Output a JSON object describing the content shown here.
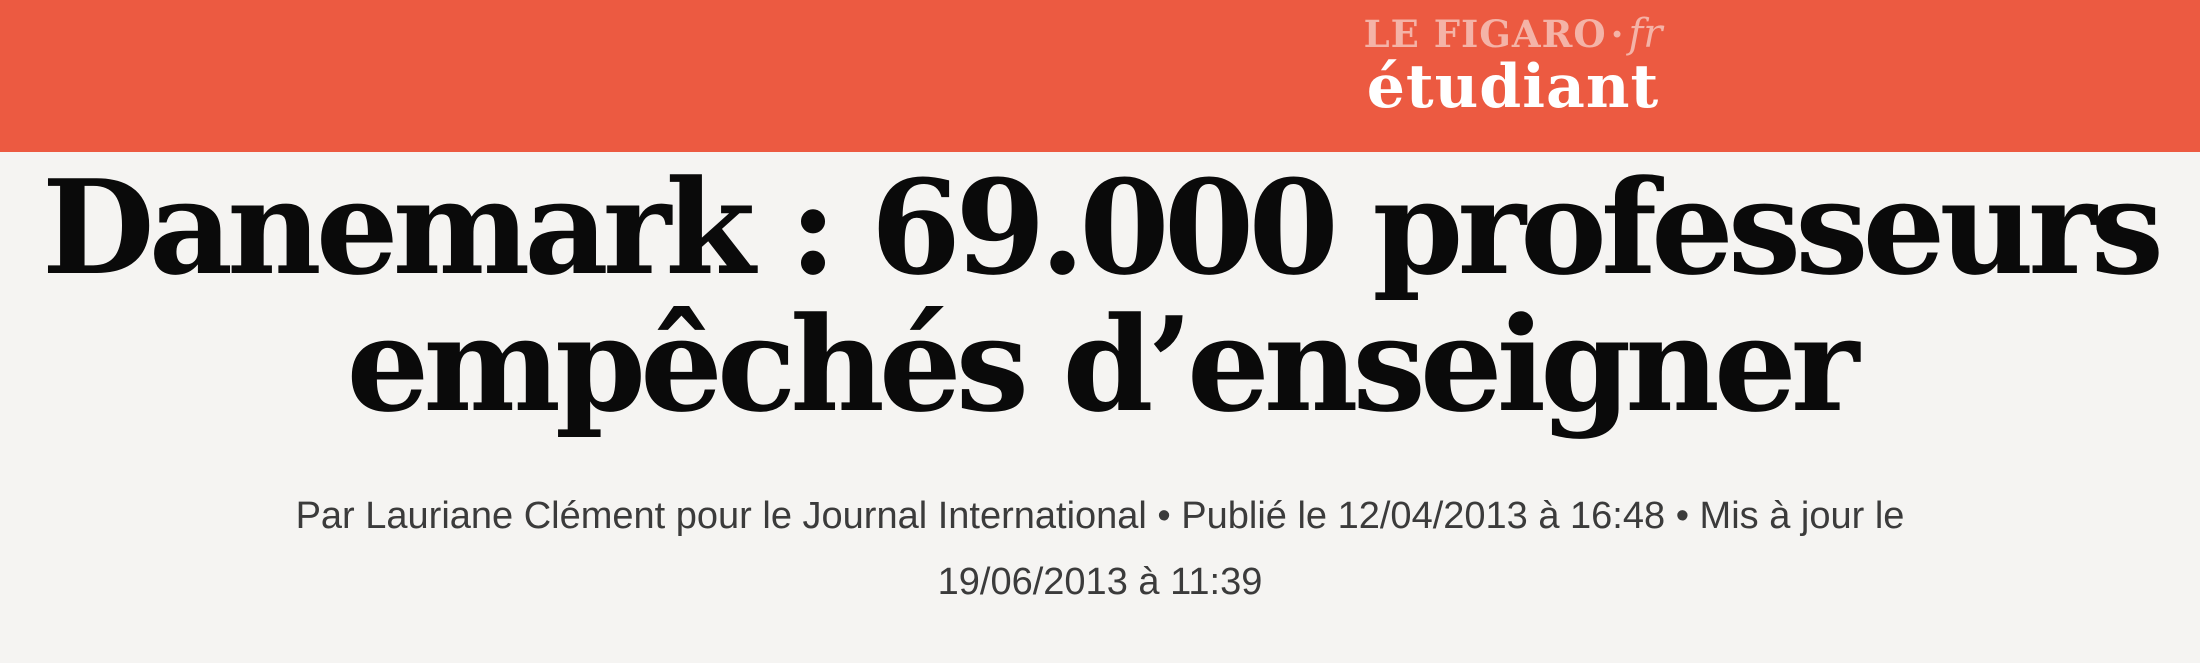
{
  "page": {
    "background_color": "#f5f4f2"
  },
  "header": {
    "background_color": "#ec5a41",
    "logo": {
      "primary": "LE FIGARO",
      "separator": "·",
      "suffix": "fr",
      "secondary": "étudiant",
      "primary_color": "#f4b3a7",
      "secondary_color": "#ffffff"
    }
  },
  "article": {
    "headline": {
      "text": "Danemark : 69.000 professeurs empêchés d’enseigner",
      "lines": [
        "Danemark : 69.000 professeurs",
        "empêchés d’enseigner"
      ],
      "color": "#0a0a0a"
    },
    "byline": {
      "text": "Par Lauriane Clément pour le Journal International • Publié le 12/04/2013 à 16:48 • Mis à jour le 19/06/2013 à 11:39",
      "lines": [
        "Par Lauriane Clément pour le Journal International • Publié le 12/04/2013 à 16:48 • Mis à jour le",
        "19/06/2013 à 11:39"
      ],
      "author": "Lauriane Clément",
      "publication": "Journal International",
      "published": "12/04/2013 à 16:48",
      "updated": "19/06/2013 à 11:39",
      "color": "#3b3b3b"
    }
  }
}
